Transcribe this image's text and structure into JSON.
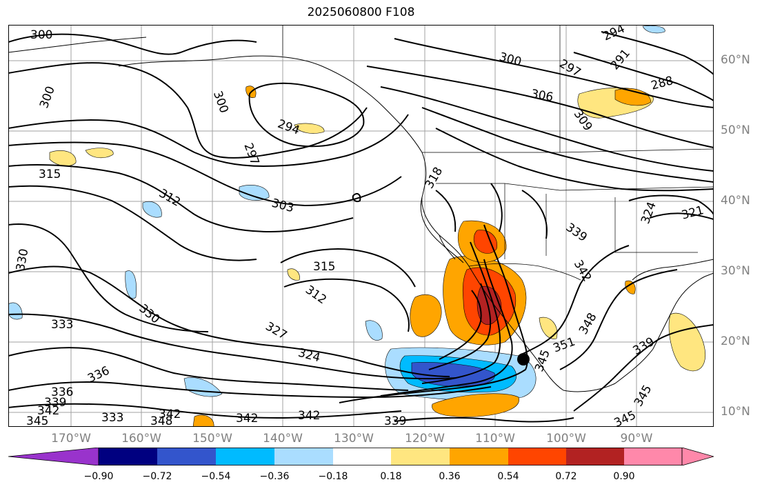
{
  "title": "2025060800 F108",
  "lat_labels": [
    "60°N",
    "50°N",
    "40°N",
    "30°N",
    "20°N",
    "10°N"
  ],
  "lon_labels": [
    "170°W",
    "160°W",
    "150°W",
    "140°W",
    "130°W",
    "120°W",
    "110°W",
    "100°W",
    "90°W"
  ],
  "contour_labels": [
    "300",
    "300",
    "300",
    "294",
    "297",
    "315",
    "312",
    "303",
    "315",
    "312",
    "330",
    "333",
    "330",
    "327",
    "324",
    "336",
    "336",
    "339",
    "342",
    "345",
    "333",
    "342",
    "348",
    "342",
    "342",
    "339",
    "318",
    "300",
    "297",
    "291",
    "294",
    "288",
    "306",
    "309",
    "324",
    "321",
    "339",
    "342",
    "348",
    "351",
    "345",
    "339",
    "345",
    "345"
  ],
  "colorbar": {
    "tick_labels": [
      "−0.90",
      "−0.72",
      "−0.54",
      "−0.36",
      "−0.18",
      "0.18",
      "0.36",
      "0.54",
      "0.72",
      "0.90"
    ],
    "colors": [
      "#9933cc",
      "#000080",
      "#3355cc",
      "#00bbff",
      "#aaddff",
      "#ffffff",
      "#ffe680",
      "#ffa500",
      "#ff4500",
      "#b22222",
      "#ff88aa"
    ]
  },
  "marker": {
    "type": "filled-circle",
    "color": "#000000"
  }
}
